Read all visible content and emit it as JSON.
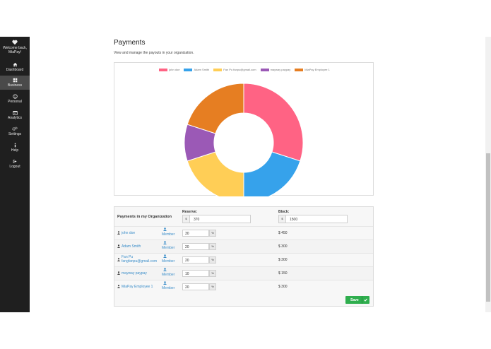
{
  "sidebar": {
    "welcome": "Welcome back,",
    "user": "MiaPay!",
    "items": [
      {
        "label": "Dashboard",
        "icon": "home-icon"
      },
      {
        "label": "Business",
        "icon": "grid-icon"
      },
      {
        "label": "Personal",
        "icon": "smiley-icon"
      },
      {
        "label": "Analytics",
        "icon": "calendar-icon"
      },
      {
        "label": "Settings",
        "icon": "gears-icon"
      },
      {
        "label": "Help",
        "icon": "info-icon"
      },
      {
        "label": "Logout",
        "icon": "logout-icon"
      }
    ],
    "active": "Business"
  },
  "page": {
    "title": "Payments",
    "subtitle": "View and manage the payouts in your organization."
  },
  "chart_data": {
    "type": "pie",
    "categories": [
      "john doe",
      "Adam Smith",
      "Fan Pu fanpu@gmail.com",
      "mayway paypay",
      "MiaPay Employee 1"
    ],
    "values": [
      30,
      20,
      20,
      10,
      20
    ],
    "colors": [
      "#ff6384",
      "#36a2eb",
      "#ffce56",
      "#9b59b6",
      "#e67e22"
    ],
    "legend": "top"
  },
  "payments": {
    "heading": "Payments in my Organization",
    "reserve_label": "Reserve:",
    "reserve_value": "370",
    "block_label": "Block:",
    "block_value": "1500",
    "currency_symbol": "$",
    "rows": [
      {
        "name": "john doe",
        "role": "Member",
        "percent": "30",
        "amount": "$ 450"
      },
      {
        "name": "Adam Smith",
        "role": "Member",
        "percent": "20",
        "amount": "$ 300"
      },
      {
        "name": "Fan Pu\nfangfanpu@gmail.com",
        "role": "Member",
        "percent": "20",
        "amount": "$ 300"
      },
      {
        "name": "mayway paypay",
        "role": "Member",
        "percent": "10",
        "amount": "$ 150"
      },
      {
        "name": "MiaPay Employee 1",
        "role": "Member",
        "percent": "20",
        "amount": "$ 300"
      }
    ],
    "percent_symbol": "%",
    "save_label": "Save"
  }
}
